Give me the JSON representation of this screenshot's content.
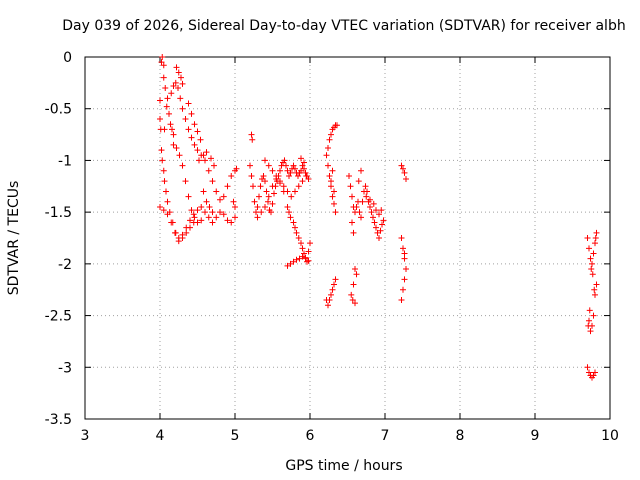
{
  "chart_data": {
    "type": "scatter",
    "title": "Day 039 of 2026, Sidereal Day-to-day VTEC variation (SDTVAR) for receiver albh",
    "xlabel": "GPS time / hours",
    "ylabel": "SDTVAR / TECUs",
    "xlim": [
      3,
      10
    ],
    "ylim": [
      -3.5,
      0
    ],
    "xticks": [
      "3",
      "4",
      "5",
      "6",
      "7",
      "8",
      "9",
      "10"
    ],
    "yticks": [
      "0",
      "-0.5",
      "-1",
      "-1.5",
      "-2",
      "-2.5",
      "-3",
      "-3.5"
    ],
    "grid": true,
    "marker": "+",
    "color": "#ff0000",
    "series": [
      {
        "points": [
          [
            4.0,
            -0.42
          ],
          [
            4.0,
            -0.6
          ],
          [
            4.01,
            -0.7
          ],
          [
            4.02,
            -0.05
          ],
          [
            4.03,
            -0.0
          ],
          [
            4.05,
            -0.08
          ],
          [
            4.05,
            -0.2
          ],
          [
            4.06,
            -0.7
          ],
          [
            4.07,
            -0.3
          ],
          [
            4.09,
            -0.48
          ],
          [
            4.1,
            -0.4
          ],
          [
            4.12,
            -0.55
          ],
          [
            4.14,
            -0.65
          ],
          [
            4.16,
            -0.7
          ],
          [
            4.18,
            -0.75
          ],
          [
            4.02,
            -0.9
          ],
          [
            4.03,
            -1.0
          ],
          [
            4.05,
            -1.1
          ],
          [
            4.06,
            -1.2
          ],
          [
            4.08,
            -1.3
          ],
          [
            4.1,
            -1.4
          ],
          [
            4.13,
            -1.5
          ],
          [
            4.17,
            -1.6
          ],
          [
            4.21,
            -1.7
          ],
          [
            4.25,
            -1.75
          ],
          [
            4.3,
            -1.72
          ],
          [
            4.35,
            -1.65
          ],
          [
            4.4,
            -1.58
          ],
          [
            4.45,
            -1.52
          ],
          [
            4.5,
            -1.48
          ],
          [
            4.55,
            -1.45
          ],
          [
            4.6,
            -1.5
          ],
          [
            4.65,
            -1.55
          ],
          [
            4.7,
            -1.6
          ],
          [
            4.75,
            -1.55
          ],
          [
            4.8,
            -1.5
          ],
          [
            4.85,
            -1.52
          ],
          [
            4.9,
            -1.58
          ],
          [
            4.95,
            -1.6
          ],
          [
            5.0,
            -1.55
          ],
          [
            4.15,
            -0.35
          ],
          [
            4.18,
            -0.28
          ],
          [
            4.21,
            -0.25
          ],
          [
            4.24,
            -0.3
          ],
          [
            4.27,
            -0.4
          ],
          [
            4.3,
            -0.5
          ],
          [
            4.34,
            -0.6
          ],
          [
            4.38,
            -0.7
          ],
          [
            4.42,
            -0.78
          ],
          [
            4.46,
            -0.85
          ],
          [
            4.5,
            -0.9
          ],
          [
            4.55,
            -0.95
          ],
          [
            4.6,
            -1.0
          ],
          [
            4.65,
            -1.1
          ],
          [
            4.7,
            -1.2
          ],
          [
            4.75,
            -1.3
          ],
          [
            4.8,
            -1.38
          ],
          [
            4.85,
            -1.35
          ],
          [
            4.9,
            -1.25
          ],
          [
            4.95,
            -1.15
          ],
          [
            5.0,
            -1.1
          ],
          [
            5.02,
            -1.08
          ],
          [
            4.98,
            -1.4
          ],
          [
            5.0,
            -1.45
          ],
          [
            4.18,
            -0.85
          ],
          [
            4.22,
            -0.88
          ],
          [
            4.26,
            -0.95
          ],
          [
            4.3,
            -1.05
          ],
          [
            4.34,
            -1.2
          ],
          [
            4.38,
            -1.35
          ],
          [
            4.42,
            -1.48
          ],
          [
            4.46,
            -1.55
          ],
          [
            4.5,
            -1.6
          ],
          [
            4.55,
            -1.58
          ],
          [
            4.0,
            -1.45
          ],
          [
            4.05,
            -1.48
          ],
          [
            4.1,
            -1.52
          ],
          [
            4.15,
            -1.6
          ],
          [
            4.2,
            -1.7
          ],
          [
            4.25,
            -1.78
          ],
          [
            4.3,
            -1.75
          ],
          [
            4.35,
            -1.7
          ],
          [
            4.4,
            -1.65
          ],
          [
            4.45,
            -1.6
          ],
          [
            4.52,
            -1.0
          ],
          [
            4.58,
            -0.95
          ],
          [
            4.62,
            -0.92
          ],
          [
            4.68,
            -0.98
          ],
          [
            4.72,
            -1.05
          ],
          [
            4.58,
            -1.3
          ],
          [
            4.62,
            -1.4
          ],
          [
            4.66,
            -1.45
          ],
          [
            4.7,
            -1.5
          ],
          [
            4.22,
            -0.1
          ],
          [
            4.25,
            -0.15
          ],
          [
            4.28,
            -0.2
          ],
          [
            4.3,
            -0.26
          ],
          [
            4.38,
            -0.45
          ],
          [
            4.42,
            -0.55
          ],
          [
            4.46,
            -0.65
          ],
          [
            4.5,
            -0.72
          ],
          [
            4.54,
            -0.8
          ],
          [
            5.2,
            -1.05
          ],
          [
            5.22,
            -1.15
          ],
          [
            5.24,
            -1.25
          ],
          [
            5.26,
            -1.4
          ],
          [
            5.28,
            -1.5
          ],
          [
            5.3,
            -1.45
          ],
          [
            5.32,
            -1.35
          ],
          [
            5.34,
            -1.25
          ],
          [
            5.36,
            -1.18
          ],
          [
            5.38,
            -1.15
          ],
          [
            5.4,
            -1.2
          ],
          [
            5.42,
            -1.3
          ],
          [
            5.44,
            -1.4
          ],
          [
            5.46,
            -1.48
          ],
          [
            5.48,
            -1.5
          ],
          [
            5.5,
            -1.42
          ],
          [
            5.52,
            -1.32
          ],
          [
            5.54,
            -1.25
          ],
          [
            5.56,
            -1.2
          ],
          [
            5.58,
            -1.15
          ],
          [
            5.6,
            -1.1
          ],
          [
            5.62,
            -1.05
          ],
          [
            5.64,
            -1.02
          ],
          [
            5.66,
            -1.0
          ],
          [
            5.68,
            -1.05
          ],
          [
            5.7,
            -1.1
          ],
          [
            5.72,
            -1.15
          ],
          [
            5.74,
            -1.12
          ],
          [
            5.76,
            -1.08
          ],
          [
            5.78,
            -1.05
          ],
          [
            5.8,
            -1.08
          ],
          [
            5.82,
            -1.12
          ],
          [
            5.84,
            -1.15
          ],
          [
            5.86,
            -1.12
          ],
          [
            5.88,
            -1.1
          ],
          [
            5.9,
            -1.05
          ],
          [
            5.92,
            -1.08
          ],
          [
            5.94,
            -1.12
          ],
          [
            5.96,
            -1.15
          ],
          [
            5.98,
            -1.18
          ],
          [
            5.22,
            -0.75
          ],
          [
            5.23,
            -0.8
          ],
          [
            5.3,
            -1.55
          ],
          [
            5.35,
            -1.5
          ],
          [
            5.4,
            -1.45
          ],
          [
            5.45,
            -1.35
          ],
          [
            5.5,
            -1.25
          ],
          [
            5.55,
            -1.18
          ],
          [
            5.6,
            -1.22
          ],
          [
            5.65,
            -1.3
          ],
          [
            5.7,
            -1.45
          ],
          [
            5.72,
            -1.5
          ],
          [
            5.74,
            -1.55
          ],
          [
            5.78,
            -1.6
          ],
          [
            5.8,
            -1.65
          ],
          [
            5.82,
            -1.7
          ],
          [
            5.85,
            -1.75
          ],
          [
            5.88,
            -1.8
          ],
          [
            5.9,
            -1.85
          ],
          [
            5.92,
            -1.9
          ],
          [
            5.94,
            -1.95
          ],
          [
            5.96,
            -1.98
          ],
          [
            5.98,
            -1.88
          ],
          [
            6.0,
            -1.8
          ],
          [
            5.4,
            -1.0
          ],
          [
            5.45,
            -1.05
          ],
          [
            5.5,
            -1.1
          ],
          [
            5.55,
            -1.15
          ],
          [
            5.6,
            -1.2
          ],
          [
            5.65,
            -1.25
          ],
          [
            5.7,
            -1.3
          ],
          [
            5.75,
            -1.35
          ],
          [
            5.8,
            -1.3
          ],
          [
            5.85,
            -1.25
          ],
          [
            5.9,
            -1.2
          ],
          [
            5.95,
            -1.15
          ],
          [
            5.88,
            -0.98
          ],
          [
            5.92,
            -1.02
          ],
          [
            5.7,
            -2.02
          ],
          [
            5.74,
            -2.0
          ],
          [
            5.78,
            -1.98
          ],
          [
            5.82,
            -1.96
          ],
          [
            5.86,
            -1.95
          ],
          [
            5.9,
            -1.93
          ],
          [
            5.94,
            -1.94
          ],
          [
            5.98,
            -1.97
          ],
          [
            6.22,
            -0.95
          ],
          [
            6.24,
            -0.88
          ],
          [
            6.26,
            -0.8
          ],
          [
            6.28,
            -0.75
          ],
          [
            6.3,
            -0.7
          ],
          [
            6.32,
            -0.68
          ],
          [
            6.34,
            -0.66
          ],
          [
            6.36,
            -0.66
          ],
          [
            6.24,
            -1.05
          ],
          [
            6.26,
            -1.15
          ],
          [
            6.28,
            -1.25
          ],
          [
            6.3,
            -1.35
          ],
          [
            6.32,
            -1.42
          ],
          [
            6.34,
            -1.5
          ],
          [
            6.28,
            -1.2
          ],
          [
            6.3,
            -1.1
          ],
          [
            6.32,
            -1.3
          ],
          [
            6.22,
            -2.35
          ],
          [
            6.24,
            -2.4
          ],
          [
            6.26,
            -2.35
          ],
          [
            6.28,
            -2.3
          ],
          [
            6.3,
            -2.25
          ],
          [
            6.32,
            -2.2
          ],
          [
            6.34,
            -2.15
          ],
          [
            6.52,
            -1.15
          ],
          [
            6.54,
            -1.25
          ],
          [
            6.56,
            -1.35
          ],
          [
            6.58,
            -1.45
          ],
          [
            6.6,
            -1.5
          ],
          [
            6.62,
            -1.45
          ],
          [
            6.64,
            -1.4
          ],
          [
            6.66,
            -1.5
          ],
          [
            6.68,
            -1.55
          ],
          [
            6.7,
            -1.4
          ],
          [
            6.72,
            -1.3
          ],
          [
            6.74,
            -1.25
          ],
          [
            6.76,
            -1.3
          ],
          [
            6.78,
            -1.4
          ],
          [
            6.8,
            -1.45
          ],
          [
            6.82,
            -1.5
          ],
          [
            6.84,
            -1.55
          ],
          [
            6.86,
            -1.6
          ],
          [
            6.88,
            -1.65
          ],
          [
            6.9,
            -1.7
          ],
          [
            6.92,
            -1.75
          ],
          [
            6.94,
            -1.68
          ],
          [
            6.96,
            -1.62
          ],
          [
            6.98,
            -1.58
          ],
          [
            6.56,
            -1.6
          ],
          [
            6.58,
            -1.7
          ],
          [
            6.6,
            -2.05
          ],
          [
            6.62,
            -2.1
          ],
          [
            6.58,
            -2.2
          ],
          [
            6.55,
            -2.3
          ],
          [
            6.57,
            -2.35
          ],
          [
            6.6,
            -2.38
          ],
          [
            6.65,
            -1.2
          ],
          [
            6.68,
            -1.1
          ],
          [
            6.75,
            -1.35
          ],
          [
            6.8,
            -1.38
          ],
          [
            6.85,
            -1.42
          ],
          [
            6.88,
            -1.48
          ],
          [
            6.92,
            -1.52
          ],
          [
            6.95,
            -1.48
          ],
          [
            7.22,
            -1.05
          ],
          [
            7.24,
            -1.08
          ],
          [
            7.26,
            -1.12
          ],
          [
            7.28,
            -1.18
          ],
          [
            7.22,
            -1.75
          ],
          [
            7.24,
            -1.85
          ],
          [
            7.26,
            -1.95
          ],
          [
            7.28,
            -2.05
          ],
          [
            7.26,
            -2.15
          ],
          [
            7.24,
            -2.25
          ],
          [
            7.22,
            -2.35
          ],
          [
            7.26,
            -1.9
          ],
          [
            9.7,
            -1.75
          ],
          [
            9.72,
            -1.85
          ],
          [
            9.74,
            -1.95
          ],
          [
            9.76,
            -2.0
          ],
          [
            9.78,
            -1.9
          ],
          [
            9.8,
            -1.8
          ],
          [
            9.82,
            -1.7
          ],
          [
            9.72,
            -2.55
          ],
          [
            9.74,
            -2.65
          ],
          [
            9.76,
            -2.6
          ],
          [
            9.78,
            -2.5
          ],
          [
            9.8,
            -2.3
          ],
          [
            9.82,
            -2.2
          ],
          [
            9.72,
            -3.05
          ],
          [
            9.74,
            -3.08
          ],
          [
            9.76,
            -3.1
          ],
          [
            9.78,
            -3.08
          ],
          [
            9.8,
            -3.05
          ],
          [
            9.7,
            -3.0
          ],
          [
            9.75,
            -2.05
          ],
          [
            9.77,
            -2.1
          ],
          [
            9.79,
            -2.25
          ],
          [
            9.73,
            -2.45
          ],
          [
            9.71,
            -2.6
          ],
          [
            9.81,
            -1.75
          ]
        ]
      }
    ]
  }
}
